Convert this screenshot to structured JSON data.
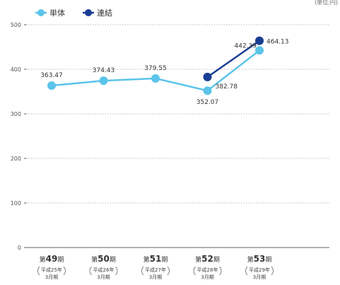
{
  "chart_data": {
    "type": "line",
    "categories": [
      {
        "prefix": "第",
        "num": "49",
        "suffix": "期",
        "era": "平成25年",
        "month": "3月期"
      },
      {
        "prefix": "第",
        "num": "50",
        "suffix": "期",
        "era": "平成26年",
        "month": "3月期"
      },
      {
        "prefix": "第",
        "num": "51",
        "suffix": "期",
        "era": "平成27年",
        "month": "3月期"
      },
      {
        "prefix": "第",
        "num": "52",
        "suffix": "期",
        "era": "平成28年",
        "month": "3月期"
      },
      {
        "prefix": "第",
        "num": "53",
        "suffix": "期",
        "era": "平成29年",
        "month": "3月期"
      }
    ],
    "series": [
      {
        "name": "単体",
        "color": "#5bc4ea",
        "values": [
          363.47,
          374.43,
          379.55,
          352.07,
          442.39
        ],
        "labels": [
          "363.47",
          "374.43",
          "379.55",
          "352.07",
          "442.39"
        ]
      },
      {
        "name": "連結",
        "color": "#1a3d93",
        "values": [
          null,
          null,
          null,
          382.78,
          464.13
        ],
        "labels": [
          "",
          "",
          "",
          "382.78",
          "464.13"
        ]
      }
    ],
    "ylim": [
      0,
      500
    ],
    "yticks": [
      "0",
      "100",
      "200",
      "300",
      "400",
      "500"
    ],
    "grid": true,
    "legend_position": "top-left",
    "units": "(単位:円)"
  }
}
